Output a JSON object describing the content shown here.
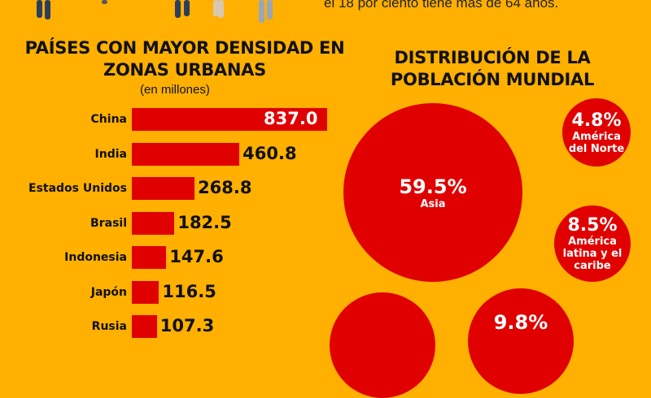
{
  "header": {
    "text": "el 18 por ciento tiene más de 64 años."
  },
  "bar_title": "PAÍSES CON MAYOR DENSIDAD EN ZONAS URBANAS",
  "bar_subtitle": "(en millones)",
  "bubble_title": "DISTRIBUCIÓN DE LA POBLACIÓN MUNDIAL",
  "colors": {
    "background": "#ffb000",
    "accent": "#e00000"
  },
  "chart_data": [
    {
      "type": "bar",
      "orientation": "horizontal",
      "title": "PAÍSES CON MAYOR DENSIDAD EN ZONAS URBANAS",
      "subtitle": "(en millones)",
      "categories": [
        "China",
        "India",
        "Estados Unidos",
        "Brasil",
        "Indonesia",
        "Japón",
        "Rusia"
      ],
      "values": [
        837.0,
        460.8,
        268.8,
        182.5,
        147.6,
        116.5,
        107.3
      ],
      "labels": [
        "837.0",
        "460.8",
        "268.8",
        "182.5",
        "147.6",
        "116.5",
        "107.3"
      ]
    },
    {
      "type": "bubble",
      "title": "DISTRIBUCIÓN DE LA POBLACIÓN MUNDIAL",
      "items": [
        {
          "label": "59.5%",
          "region": "Asia",
          "value": 59.5
        },
        {
          "label": "4.8%",
          "region": "América del Norte",
          "value": 4.8
        },
        {
          "label": "8.5%",
          "region": "América latina y el caribe",
          "value": 8.5
        },
        {
          "label": "",
          "region": "",
          "value": null
        },
        {
          "label": "9.8%",
          "region": "",
          "value": 9.8
        }
      ]
    }
  ]
}
